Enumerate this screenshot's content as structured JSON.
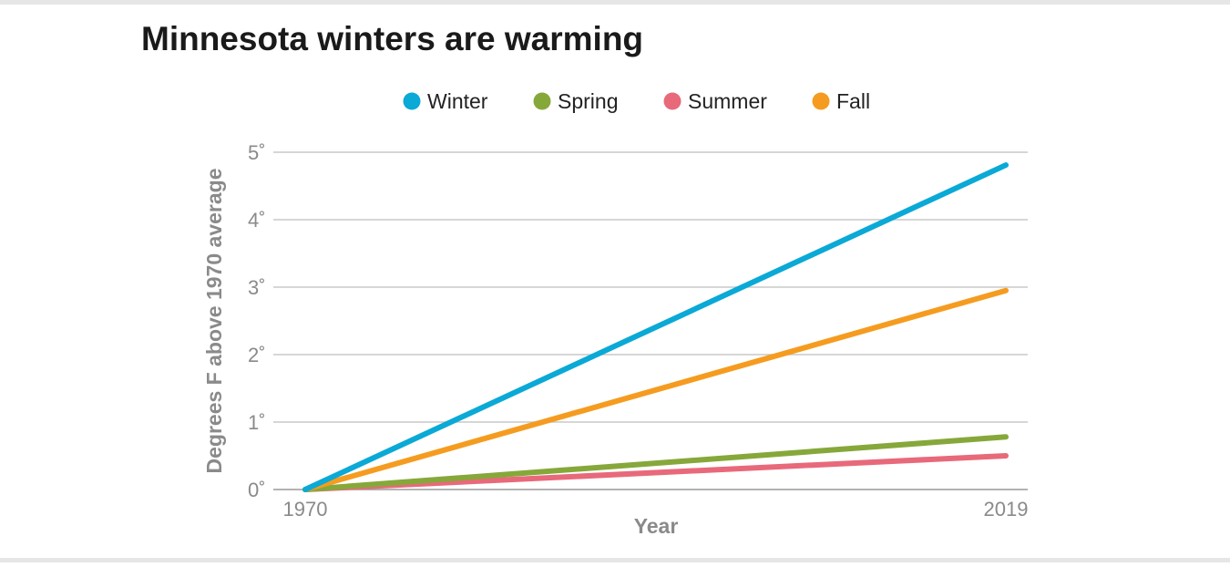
{
  "chart_data": {
    "type": "line",
    "title": "Minnesota winters are warming",
    "xlabel": "Year",
    "ylabel": "Degrees F above 1970 average",
    "x": [
      1970,
      2019
    ],
    "xticks": [
      "1970",
      "2019"
    ],
    "ylim": [
      0,
      5
    ],
    "yticks": [
      "0˚",
      "1˚",
      "2˚",
      "3˚",
      "4˚",
      "5˚"
    ],
    "grid": true,
    "legend_placement": "top",
    "series": [
      {
        "name": "Winter",
        "color": "#0aa9d6",
        "values": [
          0,
          4.81
        ]
      },
      {
        "name": "Spring",
        "color": "#86a83a",
        "values": [
          0,
          0.78
        ]
      },
      {
        "name": "Summer",
        "color": "#e8697a",
        "values": [
          0,
          0.5
        ]
      },
      {
        "name": "Fall",
        "color": "#f59c20",
        "values": [
          0,
          2.95
        ]
      }
    ]
  }
}
